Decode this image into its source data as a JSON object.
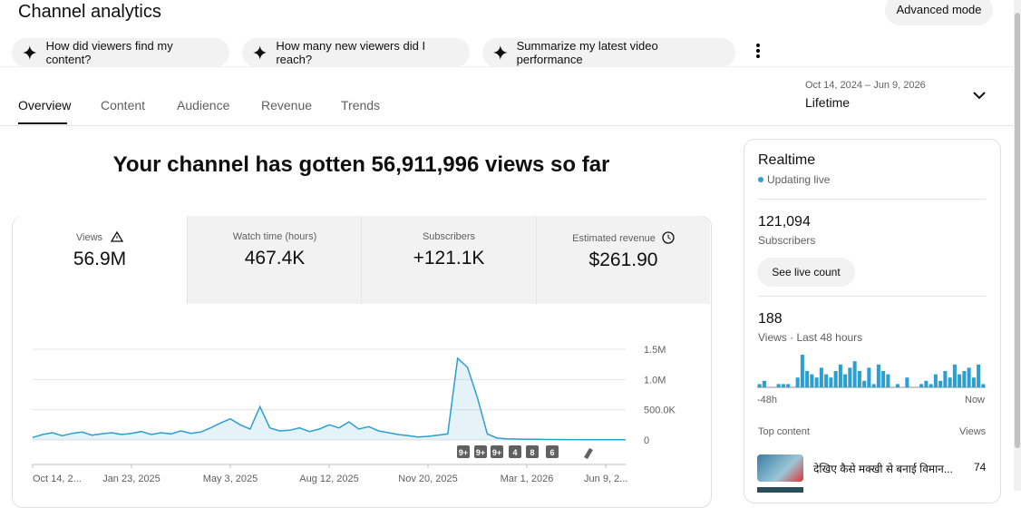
{
  "header": {
    "title": "Channel analytics",
    "advanced_mode": "Advanced mode"
  },
  "suggestions": [
    "How did viewers find my content?",
    "How many new viewers did I reach?",
    "Summarize my latest video performance"
  ],
  "tabs": [
    "Overview",
    "Content",
    "Audience",
    "Revenue",
    "Trends"
  ],
  "date_range": {
    "dates": "Oct 14, 2024 – Jun 9, 2026",
    "label": "Lifetime"
  },
  "headline": "Your channel has gotten 56,911,996 views so far",
  "metrics": [
    {
      "label": "Views",
      "value": "56.9M"
    },
    {
      "label": "Watch time (hours)",
      "value": "467.4K"
    },
    {
      "label": "Subscribers",
      "value": "+121.1K"
    },
    {
      "label": "Estimated revenue",
      "value": "$261.90"
    }
  ],
  "chart_data": [
    {
      "type": "line",
      "color": "#2b9fd0",
      "values": [
        40000,
        90000,
        120000,
        70000,
        110000,
        130000,
        80000,
        100000,
        120000,
        90000,
        110000,
        140000,
        90000,
        120000,
        100000,
        150000,
        110000,
        130000,
        200000,
        280000,
        350000,
        250000,
        180000,
        550000,
        200000,
        150000,
        160000,
        200000,
        140000,
        180000,
        250000,
        200000,
        300000,
        180000,
        220000,
        150000,
        120000,
        90000,
        70000,
        50000,
        60000,
        80000,
        100000,
        1350000,
        1200000,
        700000,
        100000,
        30000,
        20000,
        15000,
        10000,
        10000,
        8000,
        8000,
        6000,
        6000,
        5000,
        5000,
        5000,
        4000,
        4000
      ],
      "xlim": [
        0,
        60
      ],
      "xticks": [
        {
          "value": 0,
          "label": "Oct 14, 2..."
        },
        {
          "value": 10,
          "label": "Jan 23, 2025"
        },
        {
          "value": 20,
          "label": "May 3, 2025"
        },
        {
          "value": 30,
          "label": "Aug 12, 2025"
        },
        {
          "value": 40,
          "label": "Nov 20, 2025"
        },
        {
          "value": 50,
          "label": "Mar 1, 2026"
        },
        {
          "value": 58,
          "label": "Jun 9, 2..."
        }
      ],
      "ylim": [
        0,
        1500000
      ],
      "yticks": [
        0,
        {
          "value": 500000,
          "label": "500.0K"
        },
        {
          "value": 1000000,
          "label": "1.0M"
        },
        {
          "value": 1500000,
          "label": "1.5M"
        }
      ],
      "grid": true,
      "annotations": [
        "9+",
        "9+",
        "9+",
        "4",
        "8",
        "6"
      ]
    },
    {
      "type": "bar",
      "color": "#2b9fd0",
      "values": [
        1,
        2,
        0,
        0,
        1,
        1,
        1,
        0,
        3,
        10,
        5,
        4,
        3,
        6,
        4,
        3,
        5,
        7,
        4,
        6,
        8,
        5,
        2,
        6,
        1,
        7,
        5,
        4,
        0,
        1,
        0,
        3,
        0,
        0,
        1,
        2,
        1,
        4,
        2,
        5,
        3,
        7,
        4,
        5,
        6,
        3,
        7,
        1
      ]
    }
  ],
  "realtime": {
    "title": "Realtime",
    "status": "Updating live",
    "subscribers": "121,094",
    "subscribers_label": "Subscribers",
    "button": "See live count",
    "views": "188",
    "views_label": "Views · Last 48 hours",
    "start_label": "-48h",
    "end_label": "Now",
    "top_content": "Top content",
    "views_header": "Views",
    "top_video": {
      "title": "देखिए कैसे मक्खी से बनाई विमान...",
      "views": "74"
    }
  }
}
